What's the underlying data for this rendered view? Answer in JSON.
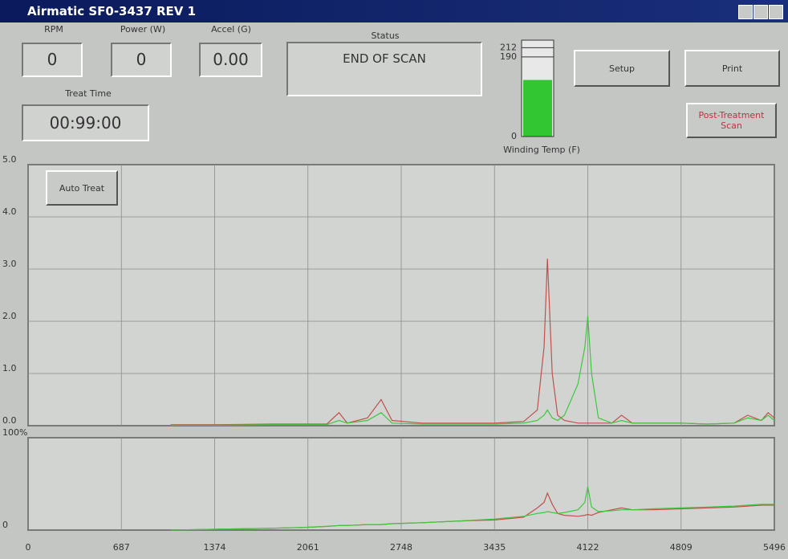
{
  "window": {
    "title": "Airmatic SF0-3437 REV 1"
  },
  "readouts": [
    {
      "label": "RPM",
      "value": "0"
    },
    {
      "label": "Power (W)",
      "value": "0"
    },
    {
      "label": "Accel (G)",
      "value": "0.00"
    }
  ],
  "status": {
    "label": "Status",
    "value": "END OF SCAN"
  },
  "treat_time": {
    "label": "Treat Time",
    "value": "00:99:00"
  },
  "gauge": {
    "label": "Winding Temp (F)",
    "ylim": [
      0,
      230
    ],
    "ticks": [
      0,
      190,
      212
    ],
    "value": 135,
    "color": "#33c633"
  },
  "buttons": [
    "Setup",
    "Print",
    "Post-Treatment Scan",
    "Auto Treat"
  ],
  "chart_data": [
    {
      "type": "line",
      "grid": true,
      "x": [
        1050,
        1400,
        1800,
        2061,
        2200,
        2290,
        2350,
        2500,
        2600,
        2680,
        2900,
        3200,
        3435,
        3650,
        3750,
        3800,
        3825,
        3860,
        3900,
        3950,
        4050,
        4100,
        4122,
        4150,
        4200,
        4300,
        4370,
        4450,
        4600,
        4809,
        5000,
        5200,
        5300,
        5400,
        5450,
        5496
      ],
      "xlim": [
        0,
        5496
      ],
      "xticks": [
        0,
        687,
        1374,
        2061,
        2748,
        3435,
        4122,
        4809,
        5496
      ],
      "ylim": [
        0,
        5
      ],
      "yticks": [
        {
          "value": 0,
          "label": "0.0"
        },
        {
          "value": 1,
          "label": "1.0"
        },
        {
          "value": 2,
          "label": "2.0"
        },
        {
          "value": 3,
          "label": "3.0"
        },
        {
          "value": 4,
          "label": "4.0"
        },
        {
          "value": 5,
          "label": "5.0"
        }
      ],
      "series": [
        {
          "color": "#c0504d",
          "values": [
            0.02,
            0.02,
            0.03,
            0.03,
            0.03,
            0.25,
            0.05,
            0.15,
            0.5,
            0.1,
            0.05,
            0.05,
            0.05,
            0.08,
            0.3,
            1.5,
            3.2,
            1.0,
            0.2,
            0.1,
            0.05,
            0.05,
            0.05,
            0.05,
            0.05,
            0.05,
            0.2,
            0.05,
            0.05,
            0.05,
            0.03,
            0.05,
            0.2,
            0.1,
            0.25,
            0.15
          ]
        },
        {
          "color": "#3cc83c",
          "values": [
            0.01,
            0.01,
            0.02,
            0.02,
            0.02,
            0.1,
            0.05,
            0.1,
            0.25,
            0.05,
            0.03,
            0.03,
            0.03,
            0.05,
            0.1,
            0.2,
            0.3,
            0.15,
            0.1,
            0.2,
            0.8,
            1.5,
            2.1,
            1.0,
            0.15,
            0.05,
            0.1,
            0.05,
            0.05,
            0.05,
            0.03,
            0.05,
            0.15,
            0.1,
            0.2,
            0.1
          ]
        }
      ]
    },
    {
      "type": "line",
      "grid": true,
      "x": [
        1050,
        1400,
        1800,
        2061,
        2200,
        2290,
        2350,
        2500,
        2600,
        2680,
        2900,
        3200,
        3435,
        3650,
        3750,
        3800,
        3825,
        3860,
        3900,
        3950,
        4050,
        4100,
        4122,
        4150,
        4200,
        4300,
        4370,
        4450,
        4600,
        4809,
        5000,
        5200,
        5300,
        5400,
        5450,
        5496
      ],
      "xlim": [
        0,
        5496
      ],
      "xticks": [
        0,
        687,
        1374,
        2061,
        2748,
        3435,
        4122,
        4809,
        5496
      ],
      "ylim": [
        0,
        100
      ],
      "yticks": [
        0,
        {
          "value": 100,
          "label": "100%"
        }
      ],
      "series": [
        {
          "color": "#c0504d",
          "values": [
            0,
            1,
            2,
            3,
            4,
            5,
            5,
            6,
            6,
            7,
            8,
            10,
            11,
            14,
            24,
            30,
            40,
            28,
            18,
            16,
            15,
            16,
            17,
            16,
            19,
            22,
            24,
            22,
            22,
            23,
            24,
            25,
            26,
            27,
            27,
            27
          ]
        },
        {
          "color": "#3cc83c",
          "values": [
            0,
            1,
            2,
            3,
            4,
            5,
            5,
            6,
            6,
            7,
            8,
            10,
            12,
            15,
            18,
            19,
            20,
            19,
            18,
            19,
            22,
            30,
            47,
            25,
            20,
            21,
            22,
            22,
            23,
            24,
            25,
            26,
            27,
            28,
            28,
            28
          ]
        }
      ]
    }
  ]
}
